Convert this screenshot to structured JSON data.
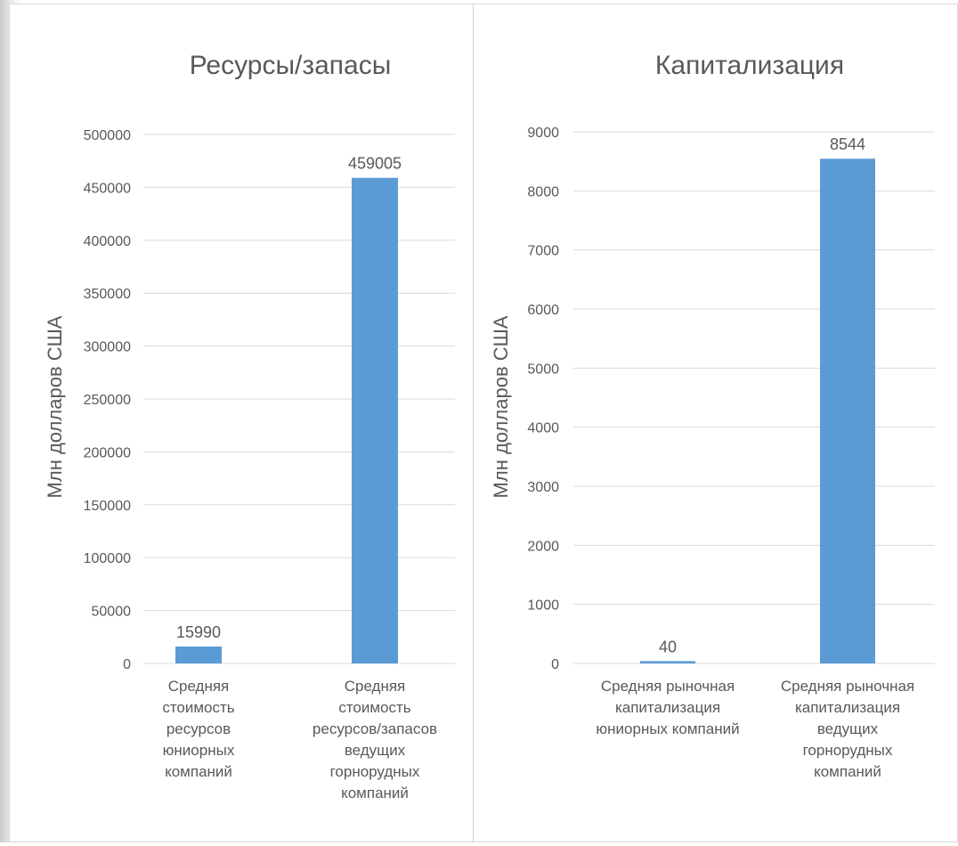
{
  "colors": {
    "bar": "#5b9bd5",
    "grid": "#d9d9d9",
    "text": "#595959"
  },
  "chart_data": [
    {
      "type": "bar",
      "title": "Ресурсы/запасы",
      "ylabel": "Млн долларов США",
      "xlabel": "",
      "ylim": [
        0,
        500000
      ],
      "yticks": [
        "0",
        "50000",
        "100000",
        "150000",
        "200000",
        "250000",
        "300000",
        "350000",
        "400000",
        "450000",
        "500000"
      ],
      "categories": [
        "Средняя стоимость ресурсов юниорных компаний",
        "Средняя стоимость ресурсов/запасов ведущих горнорудных компаний"
      ],
      "category_lines": [
        [
          "Средняя",
          "стоимость",
          "ресурсов",
          "юниорных",
          "компаний"
        ],
        [
          "Средняя",
          "стоимость",
          "ресурсов/запасов",
          "ведущих",
          "горнорудных",
          "компаний"
        ]
      ],
      "values": [
        15990,
        459005
      ],
      "data_labels": [
        "15990",
        "459005"
      ],
      "grid": true,
      "legend": "none"
    },
    {
      "type": "bar",
      "title": "Капитализация",
      "ylabel": "Млн долларов США",
      "xlabel": "",
      "ylim": [
        0,
        9000
      ],
      "yticks": [
        "0",
        "1000",
        "2000",
        "3000",
        "4000",
        "5000",
        "6000",
        "7000",
        "8000",
        "9000"
      ],
      "categories": [
        "Средняя рыночная капитализация юниорных компаний",
        "Средняя рыночная капитализация ведущих горнорудных компаний"
      ],
      "category_lines": [
        [
          "Средняя рыночная",
          "капитализация",
          "юниорных компаний"
        ],
        [
          "Средняя рыночная",
          "капитализация",
          "ведущих",
          "горнорудных",
          "компаний"
        ]
      ],
      "values": [
        40,
        8544
      ],
      "data_labels": [
        "40",
        "8544"
      ],
      "grid": true,
      "legend": "none"
    }
  ]
}
